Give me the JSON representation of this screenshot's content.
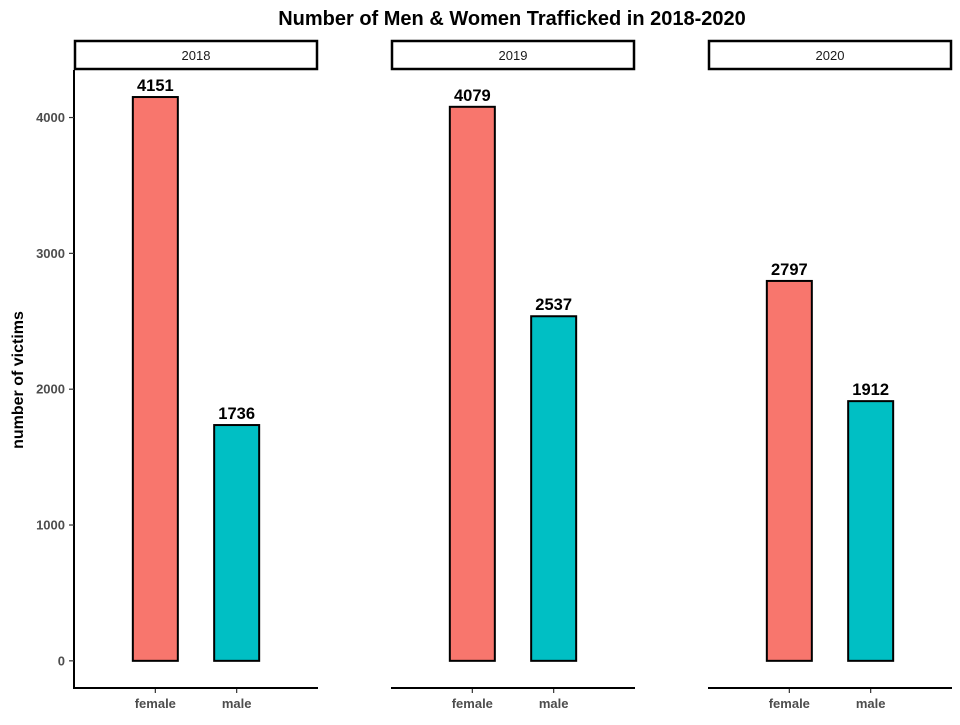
{
  "chart_data": {
    "type": "bar",
    "title": "Number of Men & Women Trafficked in 2018-2020",
    "ylabel": "number of victims",
    "xlabel": "",
    "ylim": [
      -200,
      4350
    ],
    "y_ticks": [
      0,
      1000,
      2000,
      3000,
      4000
    ],
    "categories": [
      "female",
      "male"
    ],
    "colors": {
      "female": "#F8766D",
      "male": "#00BFC4"
    },
    "grid": false,
    "legend": "none",
    "panels": [
      {
        "label": "2018",
        "values": [
          4151,
          1736
        ],
        "data_labels": [
          "4151",
          "1736"
        ]
      },
      {
        "label": "2019",
        "values": [
          4079,
          2537
        ],
        "data_labels": [
          "4079",
          "2537"
        ]
      },
      {
        "label": "2020",
        "values": [
          2797,
          1912
        ],
        "data_labels": [
          "2797",
          "1912"
        ]
      }
    ]
  }
}
